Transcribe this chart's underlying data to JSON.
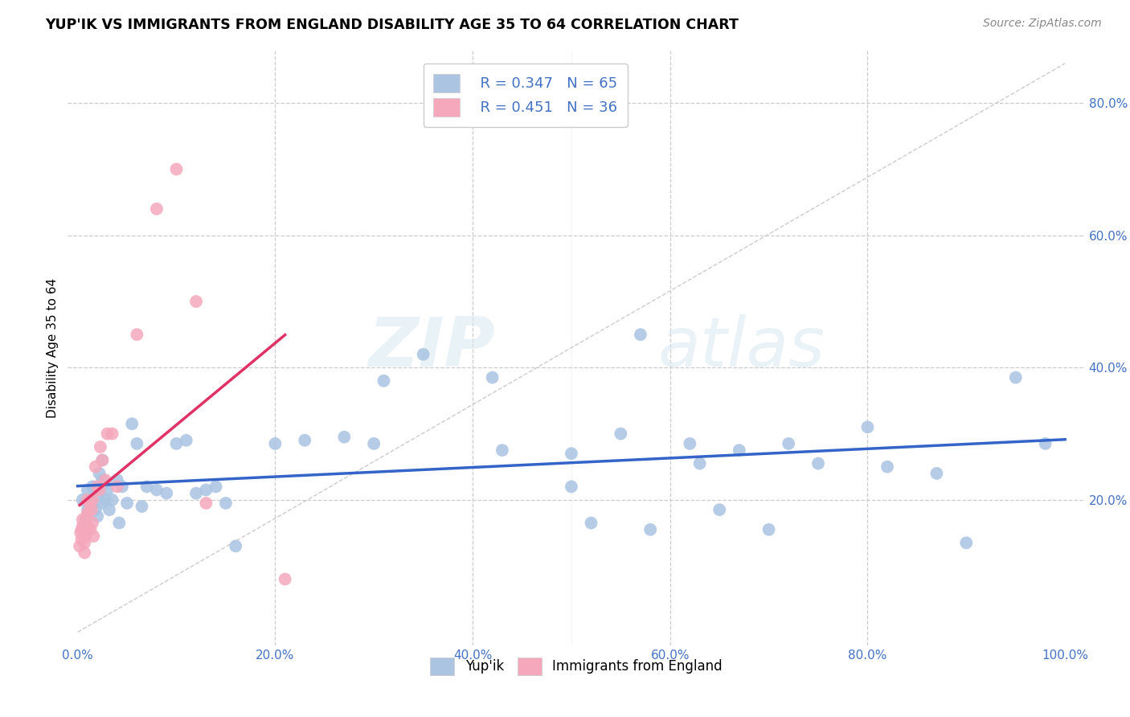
{
  "title": "YUP'IK VS IMMIGRANTS FROM ENGLAND DISABILITY AGE 35 TO 64 CORRELATION CHART",
  "source": "Source: ZipAtlas.com",
  "ylabel": "Disability Age 35 to 64",
  "x_tick_labels": [
    "0.0%",
    "20.0%",
    "40.0%",
    "60.0%",
    "80.0%",
    "100.0%"
  ],
  "y_tick_labels": [
    "20.0%",
    "40.0%",
    "60.0%",
    "80.0%"
  ],
  "y_ticks": [
    0.2,
    0.4,
    0.6,
    0.8
  ],
  "x_ticks": [
    0.0,
    0.2,
    0.4,
    0.6,
    0.8,
    1.0
  ],
  "xlim": [
    -0.01,
    1.02
  ],
  "ylim": [
    -0.02,
    0.88
  ],
  "blue_R": 0.347,
  "blue_N": 65,
  "pink_R": 0.451,
  "pink_N": 36,
  "blue_color": "#aac4e2",
  "pink_color": "#f5a8bc",
  "blue_line_color": "#3464c8",
  "pink_line_color": "#e03265",
  "watermark_zip": "ZIP",
  "watermark_atlas": "atlas",
  "blue_scatter_x": [
    0.005,
    0.008,
    0.01,
    0.01,
    0.012,
    0.015,
    0.015,
    0.018,
    0.018,
    0.02,
    0.02,
    0.022,
    0.022,
    0.025,
    0.025,
    0.025,
    0.028,
    0.028,
    0.03,
    0.032,
    0.035,
    0.04,
    0.042,
    0.045,
    0.05,
    0.055,
    0.06,
    0.065,
    0.07,
    0.08,
    0.09,
    0.1,
    0.11,
    0.12,
    0.13,
    0.14,
    0.15,
    0.16,
    0.2,
    0.23,
    0.27,
    0.3,
    0.31,
    0.35,
    0.42,
    0.43,
    0.5,
    0.5,
    0.52,
    0.55,
    0.57,
    0.58,
    0.62,
    0.63,
    0.65,
    0.67,
    0.7,
    0.72,
    0.75,
    0.8,
    0.82,
    0.87,
    0.9,
    0.95,
    0.98
  ],
  "blue_scatter_y": [
    0.2,
    0.17,
    0.215,
    0.185,
    0.2,
    0.22,
    0.195,
    0.215,
    0.185,
    0.22,
    0.175,
    0.24,
    0.21,
    0.23,
    0.195,
    0.26,
    0.225,
    0.2,
    0.215,
    0.185,
    0.2,
    0.23,
    0.165,
    0.22,
    0.195,
    0.315,
    0.285,
    0.19,
    0.22,
    0.215,
    0.21,
    0.285,
    0.29,
    0.21,
    0.215,
    0.22,
    0.195,
    0.13,
    0.285,
    0.29,
    0.295,
    0.285,
    0.38,
    0.42,
    0.385,
    0.275,
    0.27,
    0.22,
    0.165,
    0.3,
    0.45,
    0.155,
    0.285,
    0.255,
    0.185,
    0.275,
    0.155,
    0.285,
    0.255,
    0.31,
    0.25,
    0.24,
    0.135,
    0.385,
    0.285
  ],
  "pink_scatter_x": [
    0.002,
    0.003,
    0.004,
    0.004,
    0.005,
    0.005,
    0.006,
    0.007,
    0.007,
    0.008,
    0.008,
    0.009,
    0.01,
    0.01,
    0.01,
    0.012,
    0.013,
    0.014,
    0.015,
    0.015,
    0.016,
    0.018,
    0.02,
    0.022,
    0.023,
    0.025,
    0.028,
    0.03,
    0.035,
    0.04,
    0.06,
    0.08,
    0.1,
    0.12,
    0.13,
    0.21
  ],
  "pink_scatter_y": [
    0.13,
    0.15,
    0.14,
    0.155,
    0.16,
    0.17,
    0.145,
    0.135,
    0.12,
    0.145,
    0.165,
    0.175,
    0.18,
    0.16,
    0.2,
    0.195,
    0.155,
    0.185,
    0.2,
    0.165,
    0.145,
    0.25,
    0.22,
    0.215,
    0.28,
    0.26,
    0.23,
    0.3,
    0.3,
    0.22,
    0.45,
    0.64,
    0.7,
    0.5,
    0.195,
    0.08
  ]
}
